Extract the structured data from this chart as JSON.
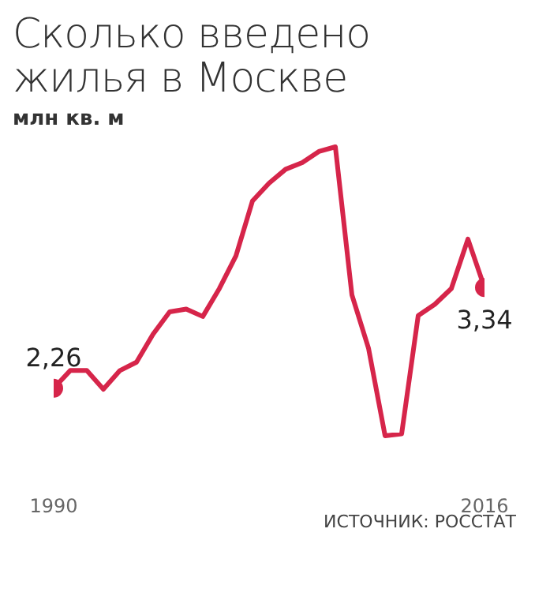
{
  "chart_data": {
    "type": "line",
    "title": "Сколько введено жилья в Москве",
    "subtitle": "млн кв. м",
    "annotations": [
      "ИСТОЧНИК: РОССТАТ"
    ],
    "x": [
      1990,
      1991,
      1992,
      1993,
      1994,
      1995,
      1996,
      1997,
      1998,
      1999,
      2000,
      2001,
      2002,
      2003,
      2004,
      2005,
      2006,
      2007,
      2008,
      2009,
      2010,
      2011,
      2012,
      2013,
      2014,
      2015,
      2016
    ],
    "series": [
      {
        "color": "#d6254a",
        "values": [
          2.26,
          2.45,
          2.45,
          2.25,
          2.45,
          2.54,
          2.84,
          3.08,
          3.11,
          3.03,
          3.33,
          3.68,
          4.27,
          4.46,
          4.61,
          4.68,
          4.8,
          4.85,
          3.26,
          2.69,
          1.75,
          1.77,
          3.04,
          3.16,
          3.33,
          3.86,
          3.34
        ],
        "value_labels": [
          "2,26",
          null,
          null,
          null,
          null,
          null,
          null,
          null,
          null,
          null,
          null,
          null,
          null,
          null,
          null,
          null,
          null,
          null,
          null,
          null,
          null,
          null,
          null,
          null,
          null,
          null,
          "3,34"
        ]
      }
    ],
    "xlim": [
      1990,
      2016
    ],
    "xticks": [
      1990,
      2016
    ],
    "tick_labels": "x",
    "grid": false,
    "legend": false
  }
}
